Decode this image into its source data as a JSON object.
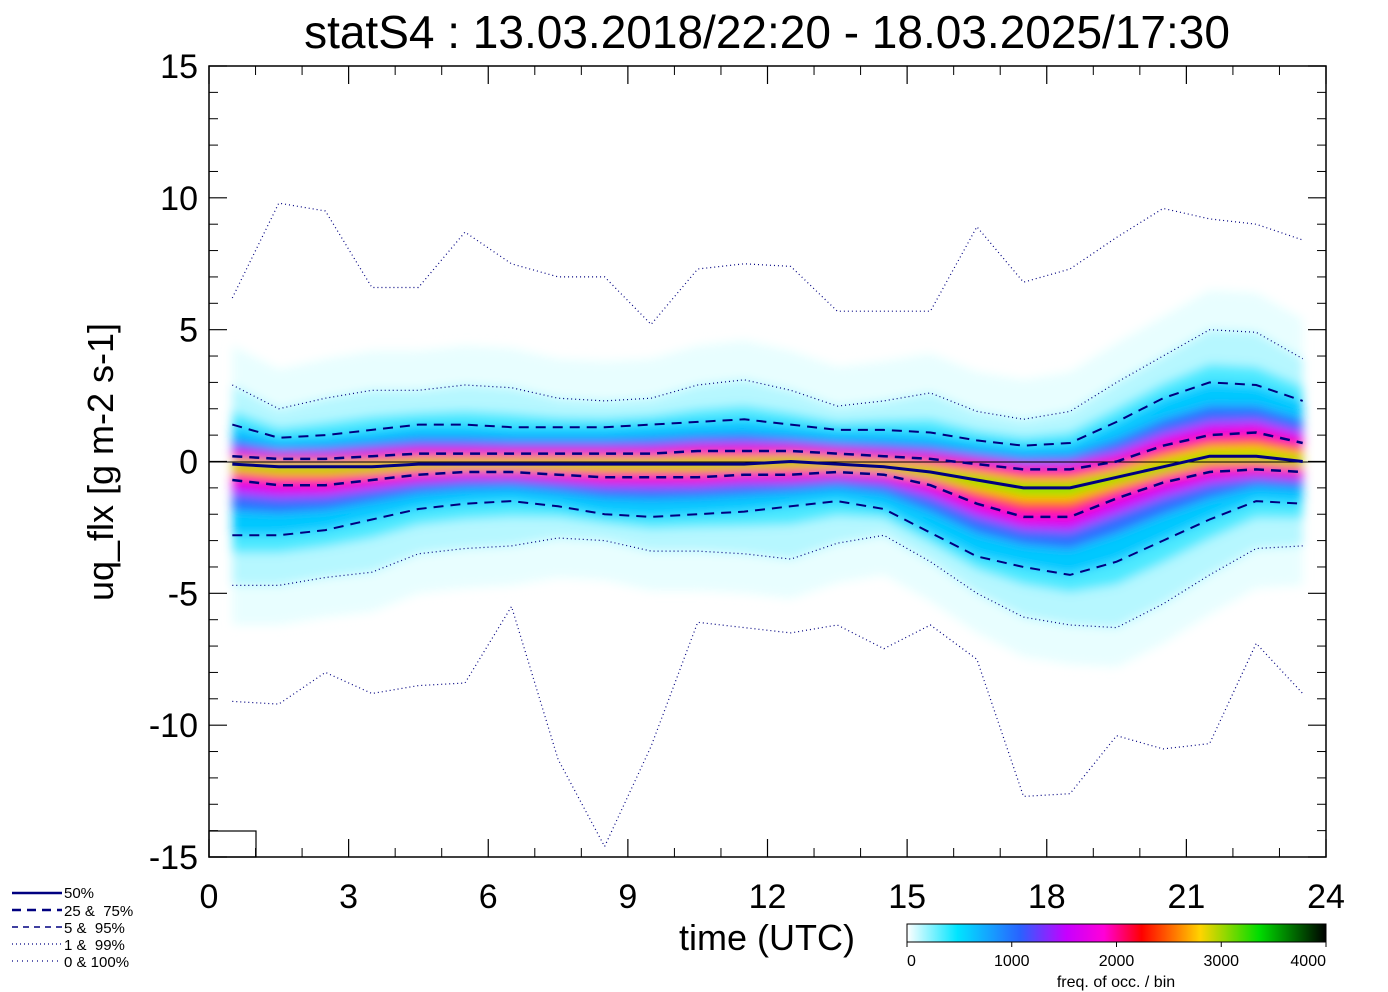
{
  "chart_data": {
    "type": "line",
    "title": "statS4 : 13.03.2018/22:20 - 18.03.2025/17:30",
    "xlabel": "time (UTC)",
    "ylabel": "uq_flx [g m-2 s-1]",
    "xlim": [
      0,
      24
    ],
    "ylim": [
      -15,
      15
    ],
    "xticks": [
      0,
      3,
      6,
      9,
      12,
      15,
      18,
      21,
      24
    ],
    "xtick_labels": [
      "0",
      "3",
      "6",
      "9",
      "12",
      "15",
      "18",
      "21",
      "24"
    ],
    "yticks": [
      15,
      10,
      5,
      0,
      -5,
      -10,
      -15
    ],
    "ytick_labels": [
      "15",
      "10",
      "5",
      "0",
      "-5",
      "-10",
      "-15"
    ],
    "x": [
      0.5,
      1.5,
      2.5,
      3.5,
      4.5,
      5.5,
      6.5,
      7.5,
      8.5,
      9.5,
      10.5,
      11.5,
      12.5,
      13.5,
      14.5,
      15.5,
      16.5,
      17.5,
      18.5,
      19.5,
      20.5,
      21.5,
      22.5,
      23.5
    ],
    "series": [
      {
        "name": "100%",
        "style": "dotted",
        "values": [
          6.2,
          9.8,
          9.5,
          6.6,
          6.6,
          8.7,
          7.5,
          7.0,
          7.0,
          5.2,
          7.3,
          7.5,
          7.4,
          5.7,
          5.7,
          5.7,
          8.9,
          6.8,
          7.3,
          8.5,
          9.6,
          9.2,
          9.0,
          8.4
        ]
      },
      {
        "name": "99%",
        "style": "dotted",
        "values": [
          2.9,
          2.0,
          2.4,
          2.7,
          2.7,
          2.9,
          2.8,
          2.4,
          2.3,
          2.4,
          2.9,
          3.1,
          2.7,
          2.1,
          2.3,
          2.6,
          1.9,
          1.6,
          1.9,
          3.0,
          4.0,
          5.0,
          4.9,
          3.9
        ]
      },
      {
        "name": "95%",
        "style": "dashed",
        "values": [
          1.4,
          0.9,
          1.0,
          1.2,
          1.4,
          1.4,
          1.3,
          1.3,
          1.3,
          1.4,
          1.5,
          1.6,
          1.4,
          1.2,
          1.2,
          1.1,
          0.8,
          0.6,
          0.7,
          1.5,
          2.4,
          3.0,
          2.9,
          2.3
        ]
      },
      {
        "name": "75%",
        "style": "dashed",
        "values": [
          0.2,
          0.1,
          0.1,
          0.2,
          0.3,
          0.3,
          0.3,
          0.3,
          0.3,
          0.3,
          0.4,
          0.4,
          0.4,
          0.3,
          0.2,
          0.1,
          -0.1,
          -0.3,
          -0.3,
          0.0,
          0.6,
          1.0,
          1.1,
          0.7
        ]
      },
      {
        "name": "50%",
        "style": "solid",
        "values": [
          -0.1,
          -0.2,
          -0.2,
          -0.2,
          -0.1,
          -0.1,
          -0.1,
          -0.1,
          -0.1,
          -0.1,
          -0.1,
          -0.1,
          0.0,
          -0.1,
          -0.2,
          -0.4,
          -0.7,
          -1.0,
          -1.0,
          -0.6,
          -0.2,
          0.2,
          0.2,
          0.0
        ]
      },
      {
        "name": "25%",
        "style": "dashed",
        "values": [
          -0.7,
          -0.9,
          -0.9,
          -0.7,
          -0.5,
          -0.4,
          -0.4,
          -0.5,
          -0.6,
          -0.6,
          -0.6,
          -0.5,
          -0.5,
          -0.4,
          -0.5,
          -0.9,
          -1.6,
          -2.1,
          -2.1,
          -1.4,
          -0.8,
          -0.4,
          -0.3,
          -0.4
        ]
      },
      {
        "name": "5%",
        "style": "dashed",
        "values": [
          -2.8,
          -2.8,
          -2.6,
          -2.2,
          -1.8,
          -1.6,
          -1.5,
          -1.7,
          -2.0,
          -2.1,
          -2.0,
          -1.9,
          -1.7,
          -1.5,
          -1.8,
          -2.7,
          -3.6,
          -4.0,
          -4.3,
          -3.8,
          -3.0,
          -2.2,
          -1.5,
          -1.6
        ]
      },
      {
        "name": "1%",
        "style": "dotted",
        "values": [
          -4.7,
          -4.7,
          -4.4,
          -4.2,
          -3.5,
          -3.3,
          -3.2,
          -2.9,
          -3.0,
          -3.4,
          -3.4,
          -3.5,
          -3.7,
          -3.1,
          -2.8,
          -3.8,
          -5.0,
          -5.9,
          -6.2,
          -6.3,
          -5.4,
          -4.3,
          -3.3,
          -3.2
        ]
      },
      {
        "name": "0%",
        "style": "dotted",
        "values": [
          -9.1,
          -9.2,
          -8.0,
          -8.8,
          -8.5,
          -8.4,
          -5.5,
          -11.3,
          -14.6,
          -10.8,
          -6.1,
          -6.3,
          -6.5,
          -6.2,
          -7.1,
          -6.2,
          -7.5,
          -12.7,
          -12.6,
          -10.4,
          -10.9,
          -10.7,
          -6.9,
          -8.8
        ]
      }
    ],
    "legend": {
      "placement": "bottom-left",
      "entries": [
        "50%",
        "25 &  75%",
        "5 &  95%",
        "1 &  99%",
        "0 & 100%"
      ]
    },
    "colorbar": {
      "label": "freq. of occ. / bin",
      "tick_labels": [
        "0",
        "1000",
        "2000",
        "3000",
        "4000"
      ],
      "range": [
        0,
        4000
      ],
      "colors": [
        "#ffffff",
        "#00e5ff",
        "#2962ff",
        "#c600ff",
        "#ff00d8",
        "#ff0000",
        "#ffd400",
        "#00dd00",
        "#000000"
      ]
    }
  }
}
